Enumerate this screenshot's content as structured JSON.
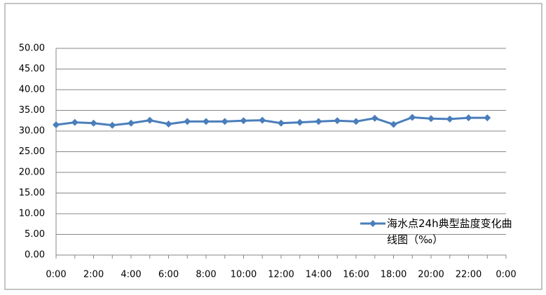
{
  "chart_data": {
    "type": "line",
    "categories": [
      "0:00",
      null,
      "2:00",
      null,
      "4:00",
      null,
      "6:00",
      null,
      "8:00",
      null,
      "10:00",
      null,
      "12:00",
      null,
      "14:00",
      null,
      "16:00",
      null,
      "18:00",
      null,
      "20:00",
      null,
      "22:00",
      null,
      "0:00"
    ],
    "series": [
      {
        "name": "海水点24h典型盐度变化曲线图（‰）",
        "color": "#4a7ebb",
        "values": [
          31.5,
          32.1,
          31.9,
          31.4,
          31.9,
          32.6,
          31.7,
          32.3,
          32.3,
          32.3,
          32.5,
          32.6,
          31.9,
          32.1,
          32.3,
          32.5,
          32.3,
          33.1,
          31.6,
          33.3,
          33.0,
          32.9,
          33.2,
          33.2,
          null
        ]
      }
    ],
    "ylim": [
      0,
      50
    ],
    "yticks": [
      {
        "value": 0,
        "label": "0.00"
      },
      {
        "value": 5,
        "label": "5.00"
      },
      {
        "value": 10,
        "label": "10.00"
      },
      {
        "value": 15,
        "label": "15.00"
      },
      {
        "value": 20,
        "label": "20.00"
      },
      {
        "value": 25,
        "label": "25.00"
      },
      {
        "value": 30,
        "label": "30.00"
      },
      {
        "value": 35,
        "label": "35.00"
      },
      {
        "value": 40,
        "label": "40.00"
      },
      {
        "value": 45,
        "label": "45.00"
      },
      {
        "value": 50,
        "label": "50.00"
      }
    ],
    "grid": true,
    "legend": "right"
  }
}
